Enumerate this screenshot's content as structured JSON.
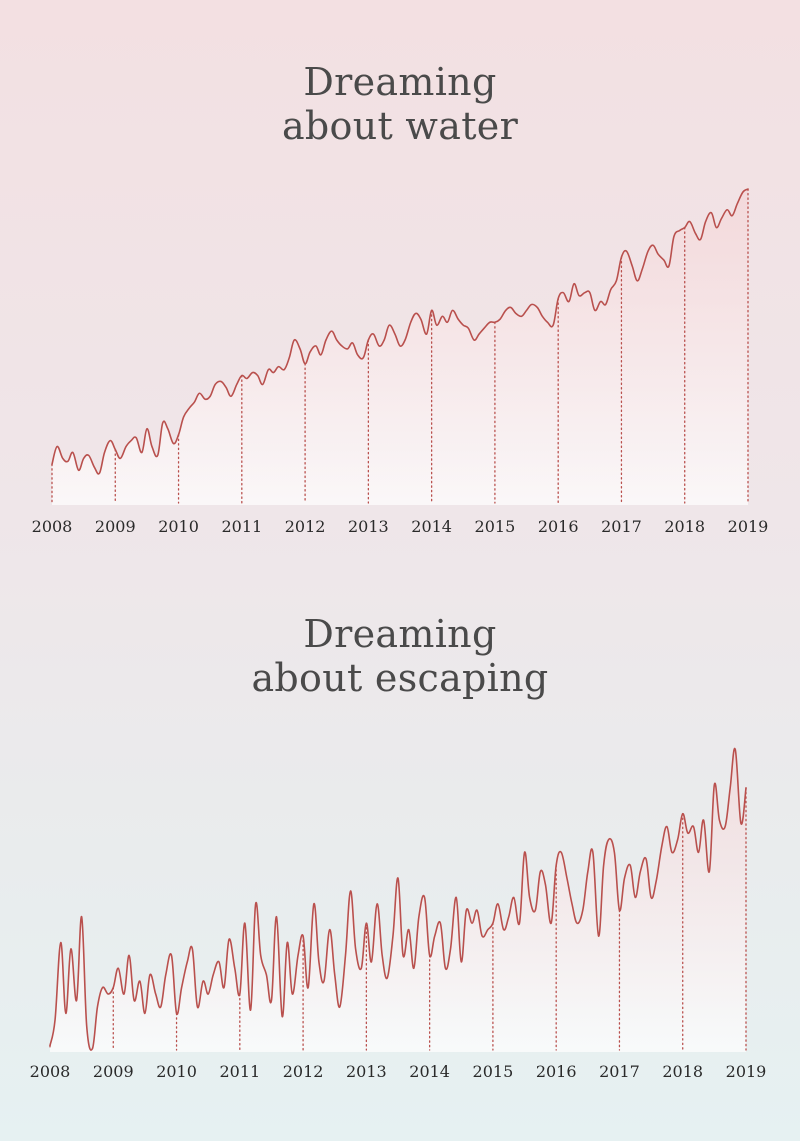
{
  "theme": {
    "line_color": "#b9504d",
    "drop_line_color": "#b9504d"
  },
  "chart_data": [
    {
      "type": "area",
      "title_lines": [
        "Dreaming",
        "about water"
      ],
      "xlabel": "",
      "ylabel": "",
      "x_ticks": [
        "2008",
        "2009",
        "2010",
        "2011",
        "2012",
        "2013",
        "2014",
        "2015",
        "2016",
        "2017",
        "2018",
        "2019"
      ],
      "xlim": [
        2008,
        2019
      ],
      "ylim": [
        0,
        100
      ],
      "grid": false,
      "series": [
        {
          "x": [
            2008.0,
            2008.08,
            2008.17,
            2008.25,
            2008.33,
            2008.42,
            2008.5,
            2008.58,
            2008.67,
            2008.75,
            2008.83,
            2008.92,
            2009.0,
            2009.08,
            2009.17,
            2009.25,
            2009.33,
            2009.42,
            2009.5,
            2009.58,
            2009.67,
            2009.75,
            2009.83,
            2009.92,
            2010.0,
            2010.08,
            2010.17,
            2010.25,
            2010.33,
            2010.42,
            2010.5,
            2010.58,
            2010.67,
            2010.75,
            2010.83,
            2010.92,
            2011.0,
            2011.08,
            2011.17,
            2011.25,
            2011.33,
            2011.42,
            2011.5,
            2011.58,
            2011.67,
            2011.75,
            2011.83,
            2011.92,
            2012.0,
            2012.08,
            2012.17,
            2012.25,
            2012.33,
            2012.42,
            2012.5,
            2012.58,
            2012.67,
            2012.75,
            2012.83,
            2012.92,
            2013.0,
            2013.08,
            2013.17,
            2013.25,
            2013.33,
            2013.42,
            2013.5,
            2013.58,
            2013.67,
            2013.75,
            2013.83,
            2013.92,
            2014.0,
            2014.08,
            2014.17,
            2014.25,
            2014.33,
            2014.42,
            2014.5,
            2014.58,
            2014.67,
            2014.75,
            2014.83,
            2014.92,
            2015.0,
            2015.08,
            2015.17,
            2015.25,
            2015.33,
            2015.42,
            2015.5,
            2015.58,
            2015.67,
            2015.75,
            2015.83,
            2015.92,
            2016.0,
            2016.08,
            2016.17,
            2016.25,
            2016.33,
            2016.42,
            2016.5,
            2016.58,
            2016.67,
            2016.75,
            2016.83,
            2016.92,
            2017.0,
            2017.08,
            2017.17,
            2017.25,
            2017.33,
            2017.42,
            2017.5,
            2017.58,
            2017.67,
            2017.75,
            2017.83,
            2017.92,
            2018.0,
            2018.08,
            2018.17,
            2018.25,
            2018.33,
            2018.42,
            2018.5,
            2018.58,
            2018.67,
            2018.75,
            2018.83,
            2018.92,
            2019.0
          ],
          "values": [
            8,
            14,
            10,
            9,
            12,
            6,
            10,
            11,
            7,
            5,
            12,
            16,
            13,
            10,
            14,
            16,
            17,
            12,
            20,
            14,
            11,
            22,
            20,
            15,
            18,
            24,
            27,
            29,
            32,
            30,
            31,
            35,
            36,
            34,
            31,
            35,
            38,
            37,
            39,
            38,
            35,
            40,
            39,
            41,
            40,
            44,
            50,
            47,
            42,
            46,
            48,
            45,
            50,
            53,
            50,
            48,
            47,
            49,
            45,
            44,
            50,
            52,
            48,
            50,
            55,
            52,
            48,
            50,
            56,
            59,
            57,
            52,
            60,
            55,
            58,
            56,
            60,
            57,
            55,
            54,
            50,
            52,
            54,
            56,
            56,
            57,
            60,
            61,
            59,
            58,
            60,
            62,
            61,
            58,
            56,
            55,
            64,
            66,
            63,
            69,
            65,
            66,
            66,
            60,
            63,
            62,
            67,
            70,
            78,
            80,
            75,
            70,
            74,
            80,
            82,
            79,
            77,
            75,
            85,
            87,
            88,
            90,
            86,
            84,
            90,
            93,
            88,
            91,
            94,
            92,
            96,
            100,
            101
          ]
        }
      ]
    },
    {
      "type": "area",
      "title_lines": [
        "Dreaming",
        "about escaping"
      ],
      "xlabel": "",
      "ylabel": "",
      "x_ticks": [
        "2008",
        "2009",
        "2010",
        "2011",
        "2012",
        "2013",
        "2014",
        "2015",
        "2016",
        "2017",
        "2018",
        "2019"
      ],
      "xlim": [
        2008,
        2019
      ],
      "ylim": [
        0,
        100
      ],
      "grid": false,
      "series": [
        {
          "x": [
            2008.0,
            2008.08,
            2008.17,
            2008.25,
            2008.33,
            2008.42,
            2008.5,
            2008.58,
            2008.67,
            2008.75,
            2008.83,
            2008.92,
            2009.0,
            2009.08,
            2009.17,
            2009.25,
            2009.33,
            2009.42,
            2009.5,
            2009.58,
            2009.67,
            2009.75,
            2009.83,
            2009.92,
            2010.0,
            2010.08,
            2010.17,
            2010.25,
            2010.33,
            2010.42,
            2010.5,
            2010.58,
            2010.67,
            2010.75,
            2010.83,
            2010.92,
            2011.0,
            2011.08,
            2011.17,
            2011.25,
            2011.33,
            2011.42,
            2011.5,
            2011.58,
            2011.67,
            2011.75,
            2011.83,
            2011.92,
            2012.0,
            2012.08,
            2012.17,
            2012.25,
            2012.33,
            2012.42,
            2012.5,
            2012.58,
            2012.67,
            2012.75,
            2012.83,
            2012.92,
            2013.0,
            2013.08,
            2013.17,
            2013.25,
            2013.33,
            2013.42,
            2013.5,
            2013.58,
            2013.67,
            2013.75,
            2013.83,
            2013.92,
            2014.0,
            2014.08,
            2014.17,
            2014.25,
            2014.33,
            2014.42,
            2014.5,
            2014.58,
            2014.67,
            2014.75,
            2014.83,
            2014.92,
            2015.0,
            2015.08,
            2015.17,
            2015.25,
            2015.33,
            2015.42,
            2015.5,
            2015.58,
            2015.67,
            2015.75,
            2015.83,
            2015.92,
            2016.0,
            2016.08,
            2016.17,
            2016.25,
            2016.33,
            2016.42,
            2016.5,
            2016.58,
            2016.67,
            2016.75,
            2016.83,
            2016.92,
            2017.0,
            2017.08,
            2017.17,
            2017.25,
            2017.33,
            2017.42,
            2017.5,
            2017.58,
            2017.67,
            2017.75,
            2017.83,
            2017.92,
            2018.0,
            2018.08,
            2018.17,
            2018.25,
            2018.33,
            2018.42,
            2018.5,
            2018.58,
            2018.67,
            2018.75,
            2018.83,
            2018.92,
            2019.0
          ],
          "values": [
            2,
            10,
            34,
            12,
            32,
            16,
            42,
            8,
            1,
            14,
            20,
            18,
            20,
            26,
            18,
            30,
            16,
            22,
            12,
            24,
            18,
            14,
            24,
            30,
            12,
            20,
            28,
            32,
            14,
            22,
            18,
            24,
            28,
            20,
            35,
            26,
            18,
            40,
            13,
            46,
            30,
            24,
            16,
            42,
            11,
            34,
            18,
            30,
            36,
            20,
            46,
            28,
            22,
            38,
            24,
            14,
            30,
            50,
            32,
            26,
            40,
            28,
            46,
            30,
            23,
            36,
            54,
            30,
            38,
            26,
            42,
            48,
            30,
            36,
            40,
            26,
            32,
            48,
            28,
            44,
            40,
            44,
            36,
            38,
            40,
            46,
            38,
            42,
            48,
            40,
            62,
            48,
            44,
            56,
            52,
            40,
            58,
            62,
            54,
            46,
            40,
            44,
            56,
            62,
            36,
            58,
            66,
            62,
            44,
            54,
            58,
            48,
            56,
            60,
            48,
            53,
            64,
            70,
            62,
            66,
            74,
            68,
            70,
            62,
            72,
            56,
            83,
            72,
            70,
            82,
            94,
            71,
            82
          ]
        }
      ]
    }
  ]
}
